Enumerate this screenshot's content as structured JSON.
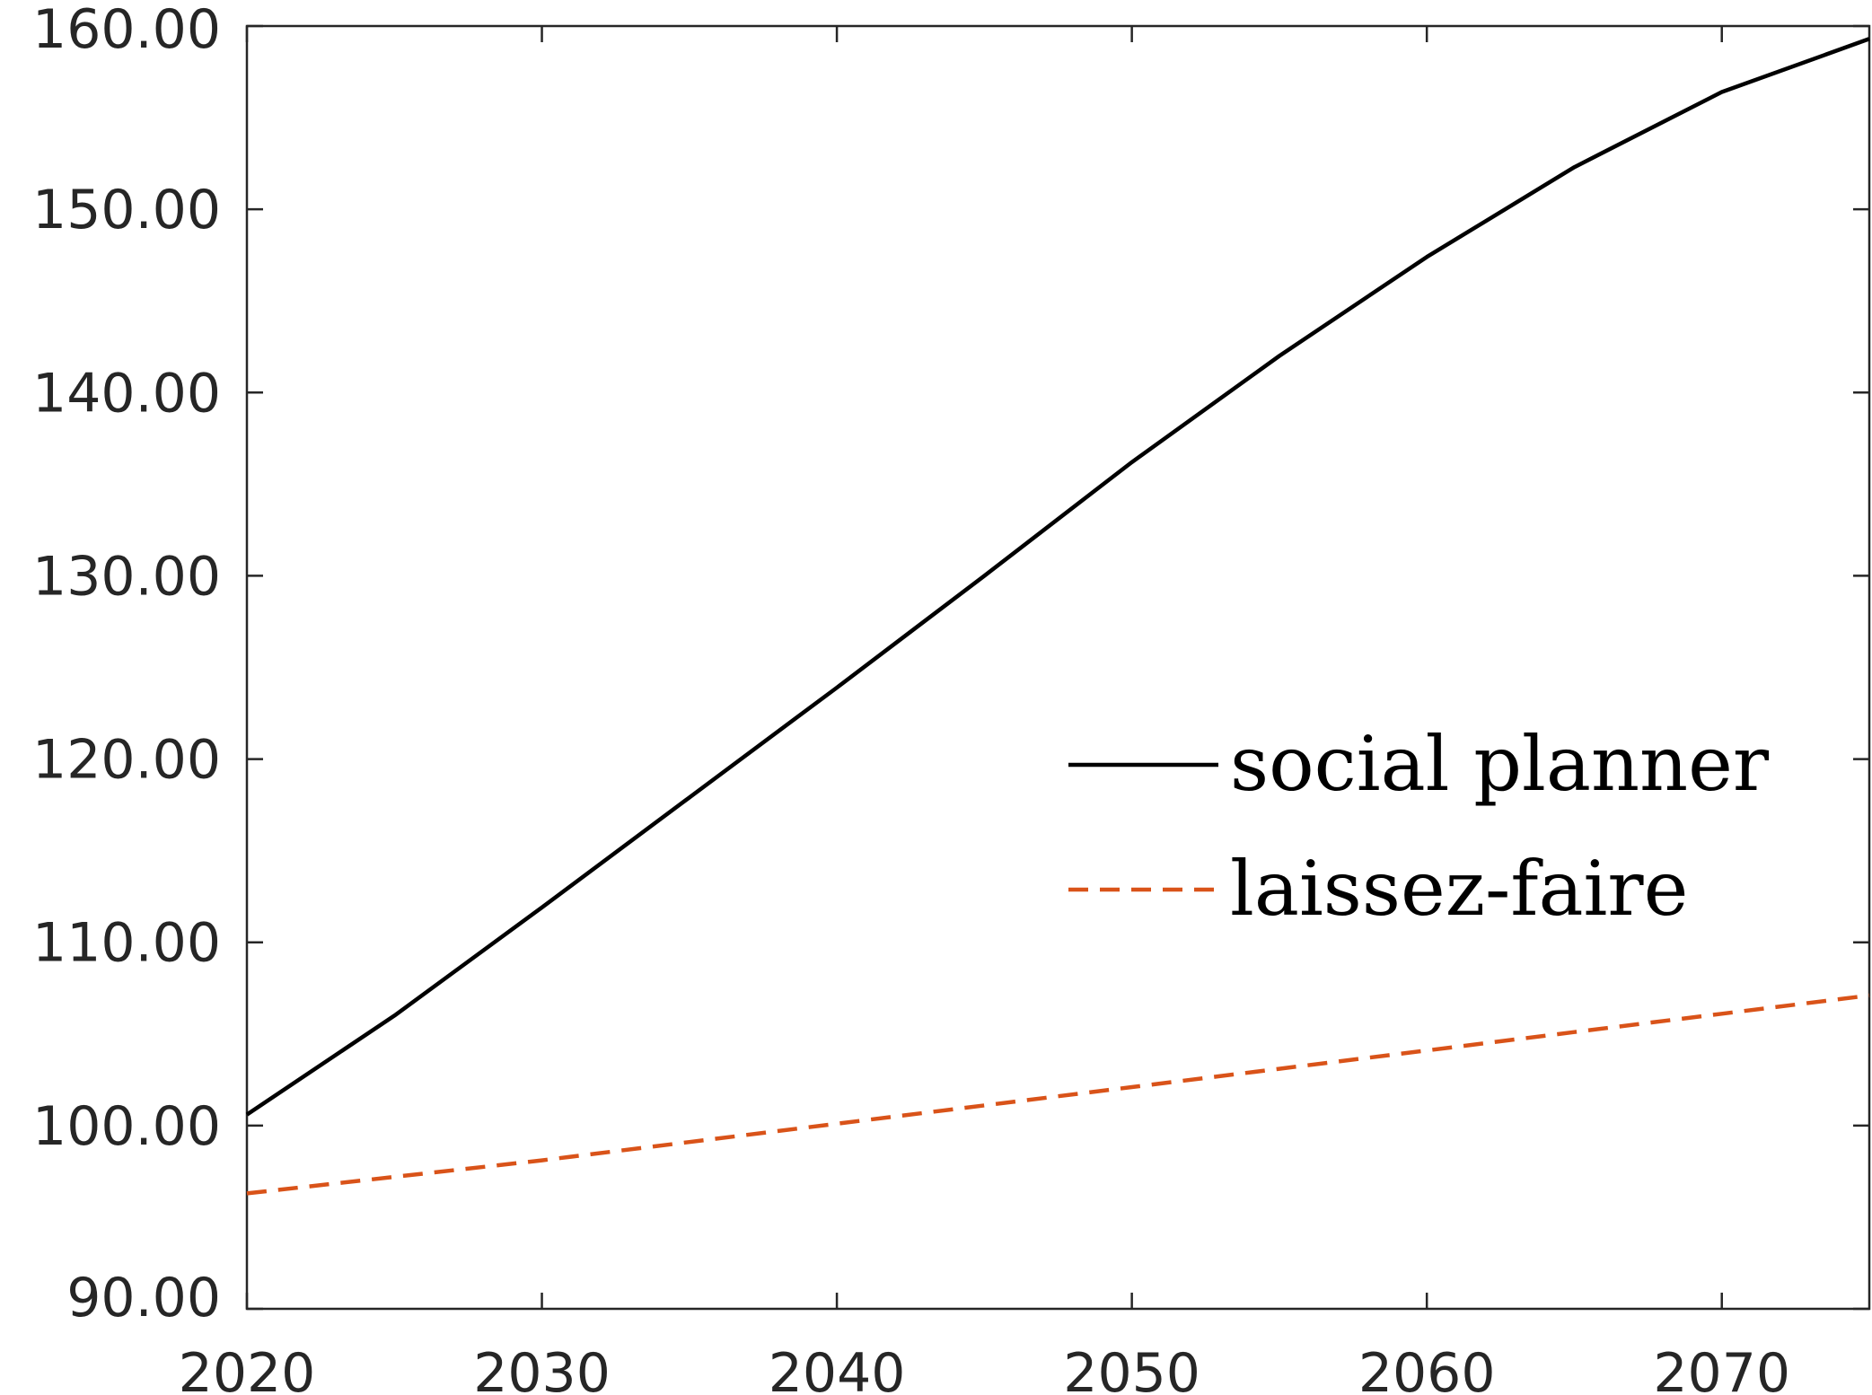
{
  "chart_data": {
    "type": "line",
    "title": "",
    "xlabel": "",
    "ylabel": "",
    "xlim": [
      2020,
      2075
    ],
    "ylim": [
      90,
      160
    ],
    "xticks": [
      2020,
      2030,
      2040,
      2050,
      2060,
      2070
    ],
    "xtick_labels": [
      "2020",
      "2030",
      "2040",
      "2050",
      "2060",
      "2070"
    ],
    "yticks": [
      90,
      100,
      110,
      120,
      130,
      140,
      150,
      160
    ],
    "ytick_labels": [
      "90.00",
      "100.00",
      "110.00",
      "120.00",
      "130.00",
      "140.00",
      "150.00",
      "160.00"
    ],
    "grid": false,
    "legend_position": "right",
    "series": [
      {
        "name": "social planner",
        "color": "#000000",
        "style": "solid",
        "x": [
          2020,
          2025,
          2030,
          2035,
          2040,
          2045,
          2050,
          2055,
          2060,
          2065,
          2070,
          2075
        ],
        "y": [
          100.6,
          106.0,
          111.9,
          117.9,
          123.9,
          130.0,
          136.2,
          142.0,
          147.4,
          152.3,
          156.4,
          159.3
        ]
      },
      {
        "name": "laissez-faire",
        "color": "#D95319",
        "style": "dashed",
        "x": [
          2020,
          2025,
          2030,
          2035,
          2040,
          2045,
          2050,
          2055,
          2060,
          2065,
          2070,
          2075
        ],
        "y": [
          96.3,
          97.2,
          98.1,
          99.1,
          100.1,
          101.1,
          102.1,
          103.1,
          104.1,
          105.1,
          106.1,
          107.1
        ]
      }
    ]
  }
}
